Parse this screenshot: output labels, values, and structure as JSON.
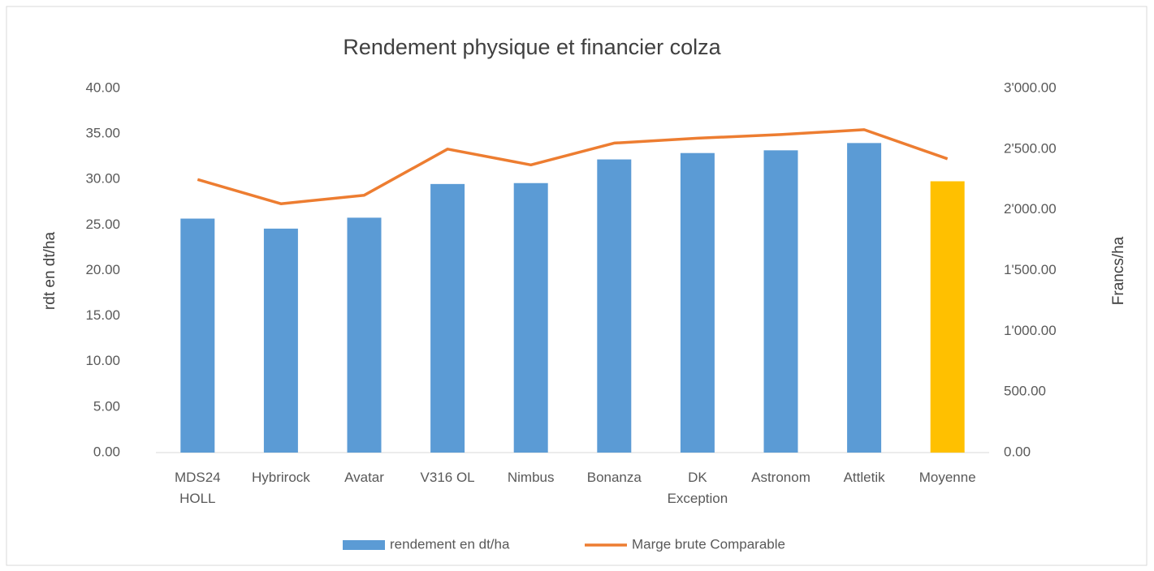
{
  "chart_data": {
    "type": "bar",
    "title": "Rendement physique et financier colza",
    "y_label": "rdt en dt/ha",
    "y2_label": "Francs/ha",
    "categories": [
      "MDS24\nHOLL",
      "Hybrirock",
      "Avatar",
      "V316 OL",
      "Nimbus",
      "Bonanza",
      "DK\nException",
      "Astronom",
      "Attletik",
      "Moyenne"
    ],
    "series": [
      {
        "name": "rendement en dt/ha",
        "type": "bar",
        "color": "#5b9bd5",
        "colors": [
          "#5b9bd5",
          "#5b9bd5",
          "#5b9bd5",
          "#5b9bd5",
          "#5b9bd5",
          "#5b9bd5",
          "#5b9bd5",
          "#5b9bd5",
          "#5b9bd5",
          "#ffc000"
        ],
        "values": [
          25.7,
          24.6,
          25.8,
          29.5,
          29.6,
          32.2,
          32.9,
          33.2,
          34.0,
          29.8
        ]
      },
      {
        "name": "Marge brute Comparable",
        "type": "line",
        "axis": "y2",
        "color": "#ed7d31",
        "values": [
          2250,
          2050,
          2120,
          2500,
          2370,
          2550,
          2590,
          2620,
          2660,
          2420
        ]
      }
    ],
    "ylim": [
      0,
      40
    ],
    "yticks": [
      {
        "value": 0,
        "label": "0.00"
      },
      {
        "value": 5,
        "label": "5.00"
      },
      {
        "value": 10,
        "label": "10.00"
      },
      {
        "value": 15,
        "label": "15.00"
      },
      {
        "value": 20,
        "label": "20.00"
      },
      {
        "value": 25,
        "label": "25.00"
      },
      {
        "value": 30,
        "label": "30.00"
      },
      {
        "value": 35,
        "label": "35.00"
      },
      {
        "value": 40,
        "label": "40.00"
      }
    ],
    "y2lim": [
      0,
      3000
    ],
    "y2ticks": [
      {
        "value": 0,
        "label": "0.00"
      },
      {
        "value": 500,
        "label": "500.00"
      },
      {
        "value": 1000,
        "label": "1'000.00"
      },
      {
        "value": 1500,
        "label": "1'500.00"
      },
      {
        "value": 2000,
        "label": "2'000.00"
      },
      {
        "value": 2500,
        "label": "2'500.00"
      },
      {
        "value": 3000,
        "label": "3'000.00"
      }
    ],
    "legend": "bottom"
  }
}
